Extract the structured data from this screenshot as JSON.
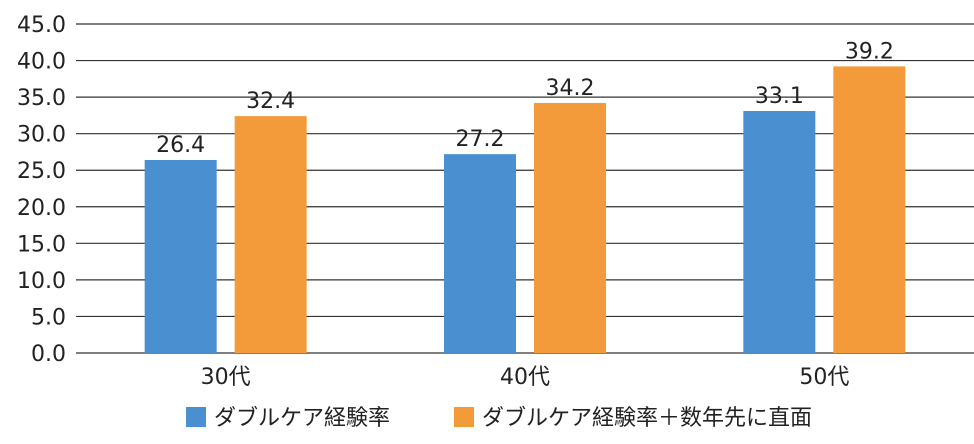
{
  "chart_data": {
    "type": "bar",
    "categories": [
      "30代",
      "40代",
      "50代"
    ],
    "series": [
      {
        "name": "ダブルケア経験率",
        "values": [
          26.4,
          27.2,
          33.1
        ],
        "color": "#4a90d0"
      },
      {
        "name": "ダブルケア経験率＋数年先に直面",
        "values": [
          32.4,
          34.2,
          39.2
        ],
        "color": "#f39b3a"
      }
    ],
    "yticks": [
      "0.0",
      "5.0",
      "10.0",
      "15.0",
      "20.0",
      "25.0",
      "30.0",
      "35.0",
      "40.0",
      "45.0"
    ],
    "ylim": [
      0,
      45
    ],
    "grid": true,
    "legend_position": "bottom",
    "title": "",
    "xlabel": "",
    "ylabel": ""
  }
}
